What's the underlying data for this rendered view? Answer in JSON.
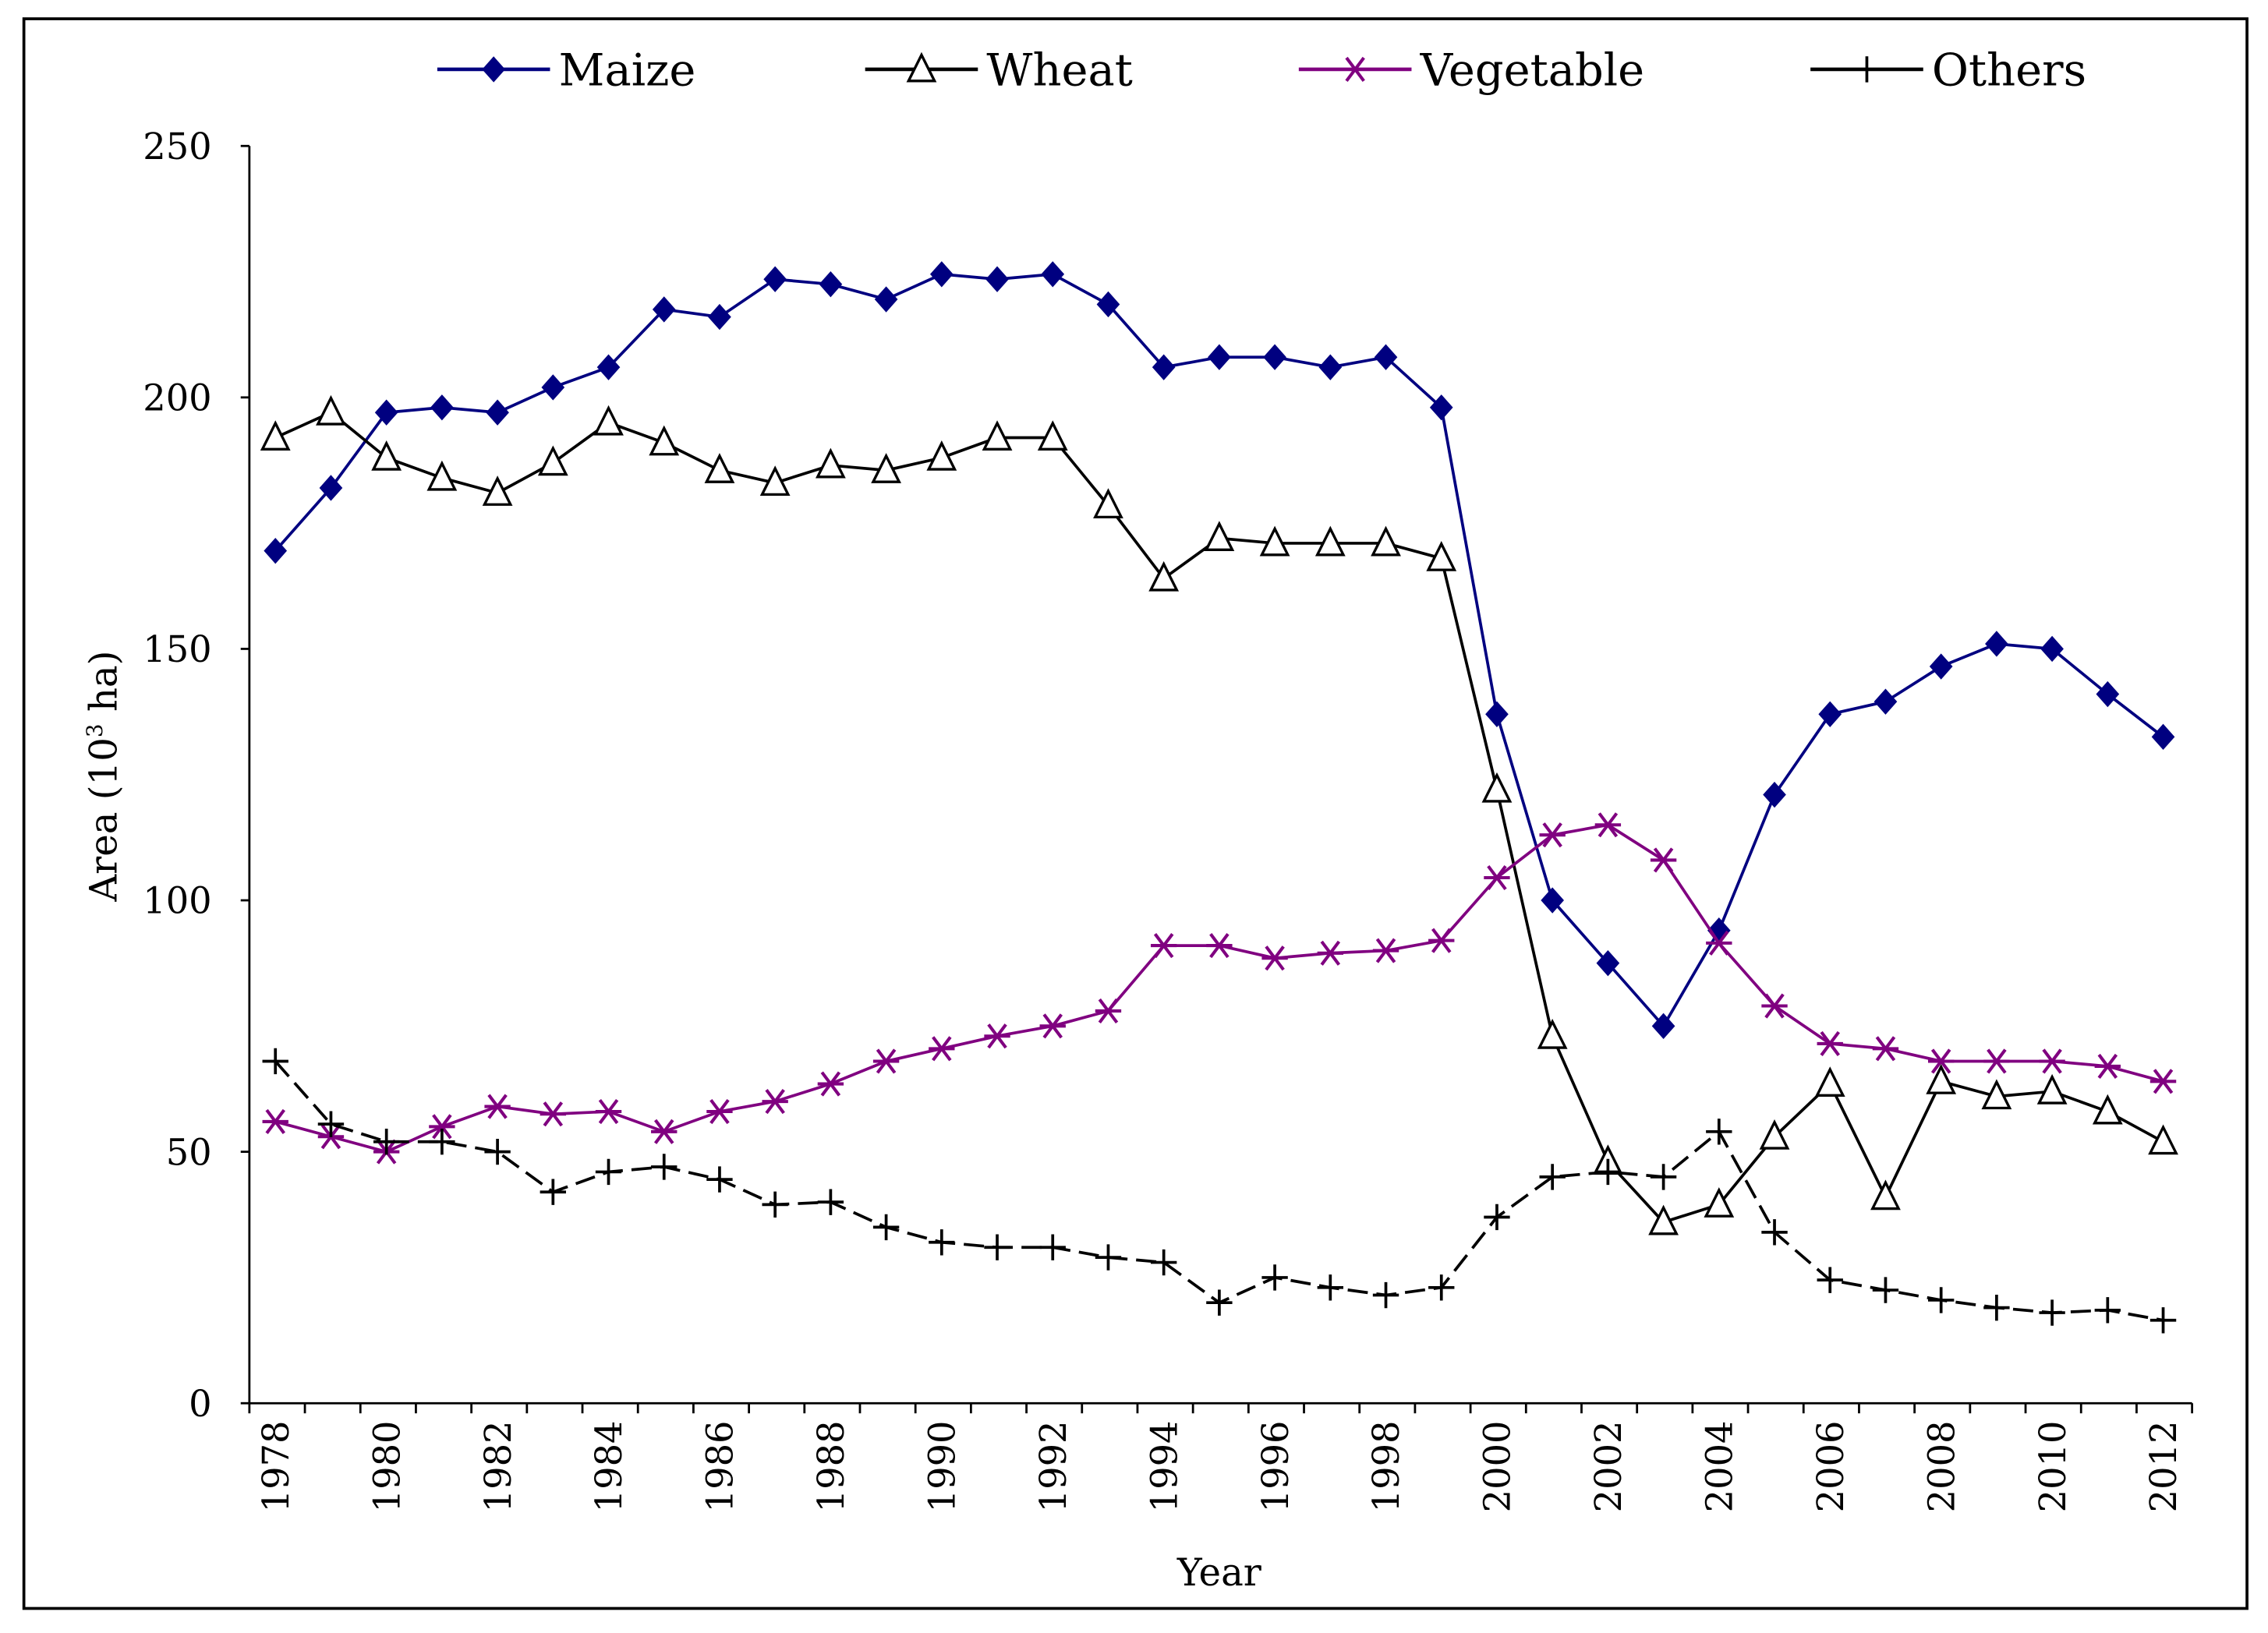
{
  "chart_data": {
    "type": "line",
    "title": "",
    "xlabel": "Year",
    "ylabel": "Area (10",
    "ylabel_sup": "3",
    "ylabel_tail": " ha)",
    "ylim": [
      0,
      250
    ],
    "yticks": [
      0,
      50,
      100,
      150,
      200,
      250
    ],
    "xticks": [
      "1978",
      "1980",
      "1982",
      "1984",
      "1986",
      "1988",
      "1990",
      "1992",
      "1994",
      "1996",
      "1998",
      "2000",
      "2002",
      "2004",
      "2006",
      "2008",
      "2010",
      "2012"
    ],
    "x": [
      1978,
      1979,
      1980,
      1981,
      1982,
      1983,
      1984,
      1985,
      1986,
      1987,
      1988,
      1989,
      1990,
      1991,
      1992,
      1993,
      1994,
      1995,
      1996,
      1997,
      1998,
      1999,
      2000,
      2001,
      2002,
      2003,
      2004,
      2005,
      2006,
      2007,
      2008,
      2009,
      2010,
      2011,
      2012
    ],
    "grid": false,
    "legend_position": "top",
    "series": [
      {
        "name": "Maize",
        "color": "#000080",
        "marker": "diamond",
        "values": [
          169.5,
          182,
          197,
          198,
          197,
          202,
          206,
          217.5,
          216,
          223.5,
          222.5,
          219.5,
          224.5,
          223.5,
          224.5,
          218.5,
          206,
          208,
          208,
          206,
          208,
          198,
          137,
          100,
          87.5,
          75,
          94,
          121,
          137,
          139.5,
          146.5,
          151,
          150,
          141,
          132.5
        ]
      },
      {
        "name": "Wheat",
        "color": "#000000",
        "marker": "triangle",
        "values": [
          192,
          197,
          188,
          184,
          181,
          187,
          195,
          191,
          185.5,
          183,
          186.5,
          185.5,
          188,
          192,
          192,
          178.5,
          164,
          172,
          171,
          171,
          171,
          168,
          122,
          73,
          48,
          36,
          39.5,
          53,
          63.5,
          41,
          64,
          61,
          62,
          58,
          52
        ]
      },
      {
        "name": "Vegetable",
        "color": "#800080",
        "marker": "asterisk",
        "values": [
          56,
          53,
          50,
          55,
          59,
          57.5,
          58,
          54,
          58,
          60,
          63.5,
          68,
          70.5,
          73,
          75,
          78,
          91,
          91,
          88.5,
          89.5,
          90,
          92,
          104.5,
          113,
          115,
          108,
          91.5,
          79,
          71.5,
          70.5,
          68,
          68,
          68,
          67,
          64
        ]
      },
      {
        "name": "Others",
        "color": "#000000",
        "marker": "plus",
        "dashed": true,
        "values": [
          68,
          55.5,
          52,
          52,
          50,
          42,
          46,
          47,
          44.5,
          39.5,
          40,
          35,
          32,
          31,
          31,
          29,
          28,
          20,
          25,
          23,
          21.5,
          23,
          37,
          45,
          46,
          45,
          54,
          34,
          24.5,
          22.5,
          20.5,
          19,
          18,
          18.5,
          16.5
        ]
      }
    ]
  }
}
